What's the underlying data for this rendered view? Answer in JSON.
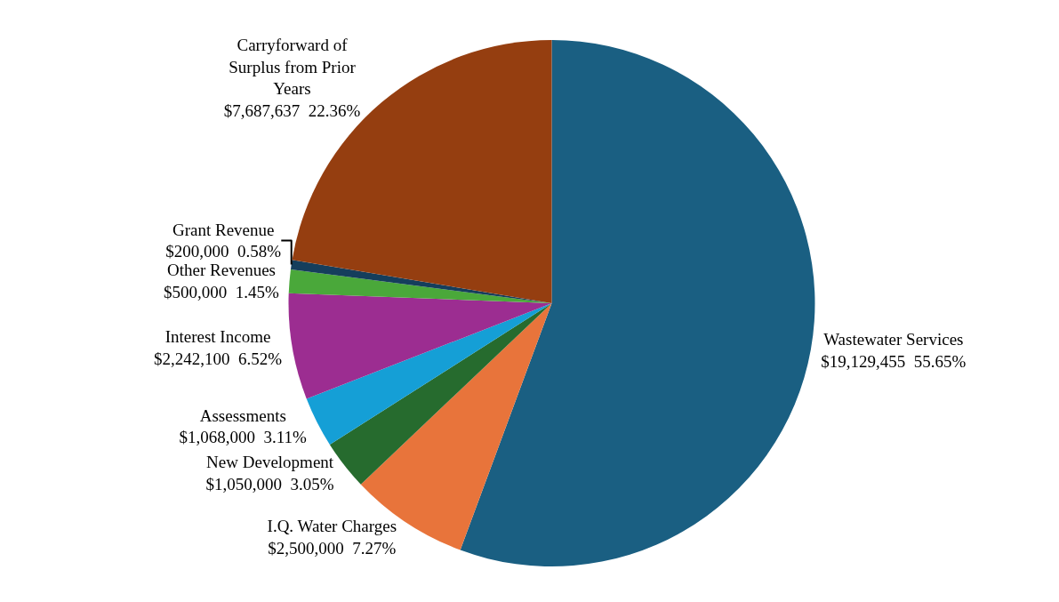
{
  "chart_data": {
    "type": "pie",
    "categories": [
      "Wastewater Services",
      "I.Q. Water Charges",
      "New Development",
      "Assessments",
      "Interest Income",
      "Other Revenues",
      "Grant Revenue",
      "Carryforward of Surplus from Prior Years"
    ],
    "values": [
      19129455,
      2500000,
      1050000,
      1068000,
      2242100,
      500000,
      200000,
      7687637
    ],
    "value_labels": [
      "$19,129,455  55.65%",
      "$2,500,000  7.27%",
      "$1,050,000  3.05%",
      "$1,068,000  3.11%",
      "$2,242,100  6.52%",
      "$500,000  1.45%",
      "$200,000  0.58%",
      "$7,687,637  22.36%"
    ],
    "colors": [
      "#1a5f82",
      "#e8743b",
      "#266b2e",
      "#159fd6",
      "#9c2d91",
      "#4aa83a",
      "#153e5c",
      "#953e10"
    ],
    "legend": false
  }
}
